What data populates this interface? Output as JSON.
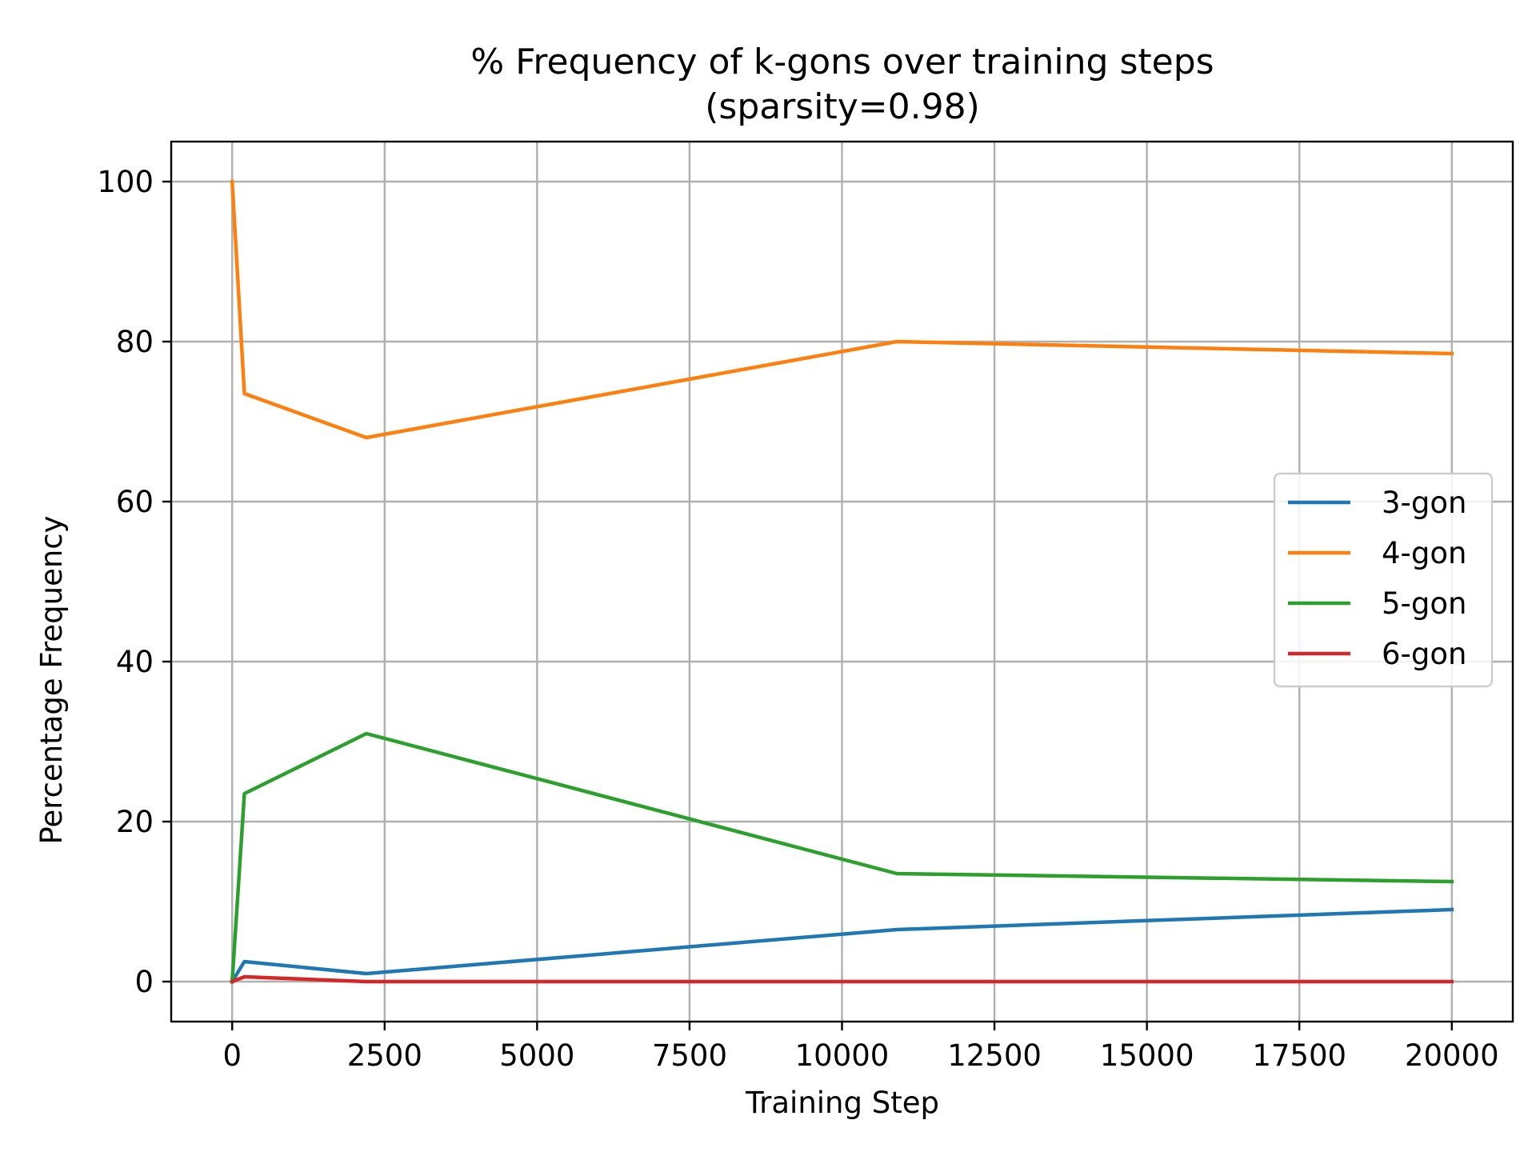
{
  "chart_data": {
    "type": "line",
    "title": "% Frequency of k-gons over training steps",
    "subtitle": "(sparsity=0.98)",
    "xlabel": "Training Step",
    "ylabel": "Percentage Frequency",
    "xlim": [
      -1000,
      21000
    ],
    "ylim": [
      -5,
      105
    ],
    "xticks": [
      0,
      2500,
      5000,
      7500,
      10000,
      12500,
      15000,
      17500,
      20000
    ],
    "yticks": [
      0,
      20,
      40,
      60,
      80,
      100
    ],
    "grid": true,
    "legend_position": "center-right",
    "x": [
      0,
      200,
      2200,
      10900,
      20000
    ],
    "series": [
      {
        "name": "3-gon",
        "color": "#1f77b4",
        "values": [
          0,
          2.5,
          1.0,
          6.5,
          9.0
        ]
      },
      {
        "name": "4-gon",
        "color": "#ff7f0e",
        "values": [
          100,
          73.5,
          68.0,
          80.0,
          78.5
        ]
      },
      {
        "name": "5-gon",
        "color": "#2ca02c",
        "values": [
          0,
          23.5,
          31.0,
          13.5,
          12.5
        ]
      },
      {
        "name": "6-gon",
        "color": "#d62728",
        "values": [
          0,
          0.6,
          0.0,
          0.0,
          0.0
        ]
      }
    ]
  }
}
